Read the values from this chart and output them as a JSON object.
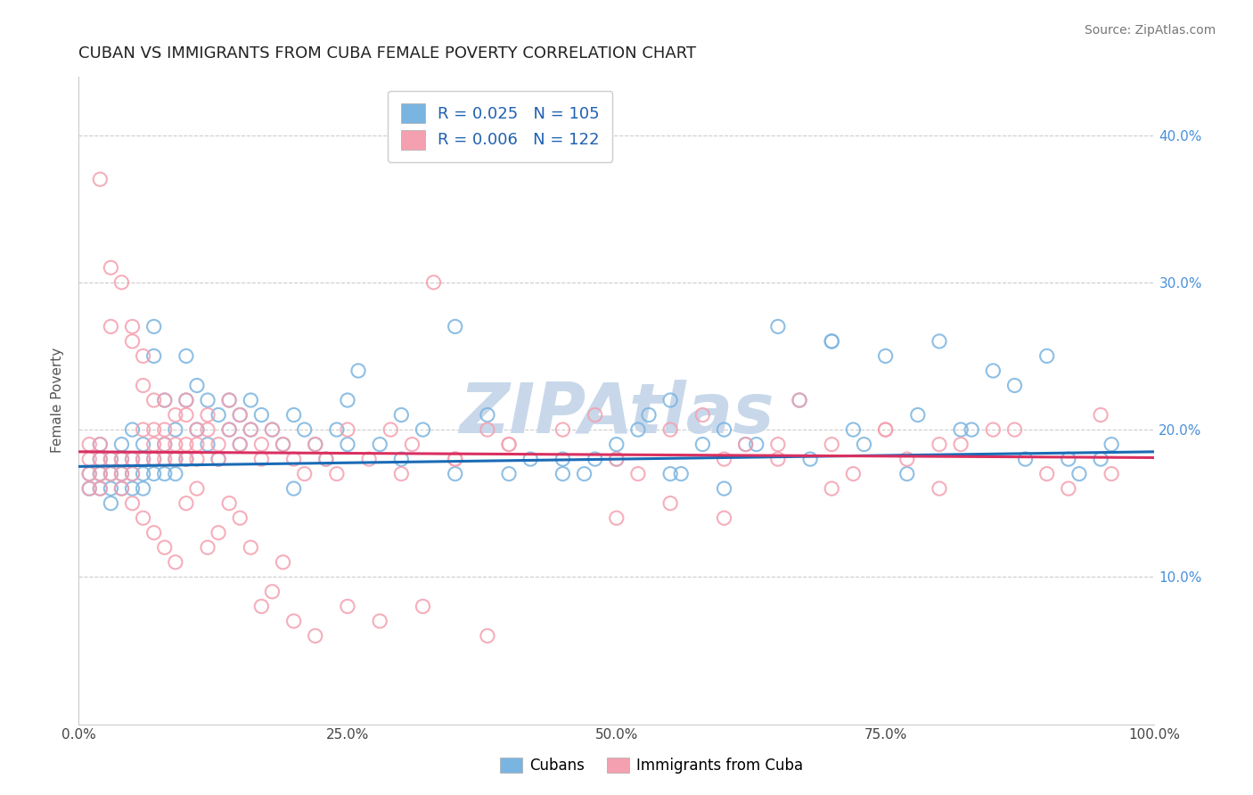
{
  "title": "CUBAN VS IMMIGRANTS FROM CUBA FEMALE POVERTY CORRELATION CHART",
  "source_text": "Source: ZipAtlas.com",
  "ylabel": "Female Poverty",
  "xlim": [
    0,
    1
  ],
  "ylim": [
    0.0,
    0.44
  ],
  "yticks": [
    0.0,
    0.1,
    0.2,
    0.3,
    0.4
  ],
  "ytick_labels_right": [
    "",
    "10.0%",
    "20.0%",
    "30.0%",
    "40.0%"
  ],
  "xticks": [
    0.0,
    0.25,
    0.5,
    0.75,
    1.0
  ],
  "xtick_labels": [
    "0.0%",
    "25.0%",
    "50.0%",
    "75.0%",
    "100.0%"
  ],
  "color_blue": "#7ab4e0",
  "color_pink": "#f4a0b0",
  "color_blue_trend": "#1a6bb5",
  "color_pink_trend": "#d93060",
  "trend_blue": [
    0.0,
    0.175,
    1.0,
    0.185
  ],
  "trend_pink": [
    0.0,
    0.185,
    1.0,
    0.181
  ],
  "watermark": "ZIPAtlas",
  "watermark_color": "#c8d8ea",
  "legend_text_color": "#2060b0",
  "cubans_x": [
    0.01,
    0.01,
    0.02,
    0.02,
    0.02,
    0.02,
    0.03,
    0.03,
    0.03,
    0.03,
    0.04,
    0.04,
    0.04,
    0.04,
    0.05,
    0.05,
    0.05,
    0.05,
    0.06,
    0.06,
    0.06,
    0.06,
    0.07,
    0.07,
    0.07,
    0.07,
    0.08,
    0.08,
    0.08,
    0.09,
    0.09,
    0.09,
    0.1,
    0.1,
    0.1,
    0.11,
    0.11,
    0.12,
    0.12,
    0.13,
    0.13,
    0.14,
    0.14,
    0.15,
    0.15,
    0.16,
    0.16,
    0.17,
    0.18,
    0.19,
    0.2,
    0.21,
    0.22,
    0.23,
    0.24,
    0.25,
    0.26,
    0.28,
    0.3,
    0.32,
    0.35,
    0.38,
    0.42,
    0.45,
    0.5,
    0.55,
    0.6,
    0.65,
    0.7,
    0.75,
    0.8,
    0.85,
    0.9,
    0.95,
    0.4,
    0.5,
    0.6,
    0.7,
    0.55,
    0.45,
    0.35,
    0.3,
    0.25,
    0.2,
    0.47,
    0.53,
    0.58,
    0.63,
    0.68,
    0.72,
    0.77,
    0.82,
    0.87,
    0.92,
    0.96,
    0.48,
    0.52,
    0.56,
    0.62,
    0.67,
    0.73,
    0.78,
    0.83,
    0.88,
    0.93
  ],
  "cubans_y": [
    0.17,
    0.16,
    0.18,
    0.17,
    0.19,
    0.16,
    0.18,
    0.17,
    0.16,
    0.15,
    0.18,
    0.17,
    0.16,
    0.19,
    0.18,
    0.17,
    0.16,
    0.2,
    0.18,
    0.17,
    0.19,
    0.16,
    0.27,
    0.25,
    0.18,
    0.17,
    0.22,
    0.19,
    0.17,
    0.2,
    0.18,
    0.17,
    0.25,
    0.22,
    0.18,
    0.23,
    0.2,
    0.22,
    0.19,
    0.21,
    0.18,
    0.22,
    0.2,
    0.21,
    0.19,
    0.22,
    0.2,
    0.21,
    0.2,
    0.19,
    0.21,
    0.2,
    0.19,
    0.18,
    0.2,
    0.22,
    0.24,
    0.19,
    0.21,
    0.2,
    0.27,
    0.21,
    0.18,
    0.17,
    0.19,
    0.22,
    0.2,
    0.27,
    0.26,
    0.25,
    0.26,
    0.24,
    0.25,
    0.18,
    0.17,
    0.18,
    0.16,
    0.26,
    0.17,
    0.18,
    0.17,
    0.18,
    0.19,
    0.16,
    0.17,
    0.21,
    0.19,
    0.19,
    0.18,
    0.2,
    0.17,
    0.2,
    0.23,
    0.18,
    0.19,
    0.18,
    0.2,
    0.17,
    0.19,
    0.22,
    0.19,
    0.21,
    0.2,
    0.18,
    0.17
  ],
  "immigrants_x": [
    0.01,
    0.01,
    0.01,
    0.01,
    0.02,
    0.02,
    0.02,
    0.02,
    0.02,
    0.03,
    0.03,
    0.03,
    0.03,
    0.04,
    0.04,
    0.04,
    0.05,
    0.05,
    0.05,
    0.05,
    0.06,
    0.06,
    0.06,
    0.06,
    0.07,
    0.07,
    0.07,
    0.07,
    0.08,
    0.08,
    0.08,
    0.08,
    0.09,
    0.09,
    0.09,
    0.1,
    0.1,
    0.1,
    0.1,
    0.11,
    0.11,
    0.11,
    0.12,
    0.12,
    0.13,
    0.13,
    0.14,
    0.14,
    0.15,
    0.15,
    0.16,
    0.17,
    0.17,
    0.18,
    0.19,
    0.2,
    0.21,
    0.22,
    0.23,
    0.24,
    0.25,
    0.27,
    0.29,
    0.31,
    0.33,
    0.35,
    0.38,
    0.4,
    0.45,
    0.5,
    0.55,
    0.6,
    0.65,
    0.7,
    0.75,
    0.8,
    0.85,
    0.9,
    0.95,
    0.3,
    0.35,
    0.4,
    0.5,
    0.55,
    0.6,
    0.7,
    0.75,
    0.8,
    0.65,
    0.48,
    0.52,
    0.58,
    0.62,
    0.67,
    0.72,
    0.77,
    0.82,
    0.87,
    0.92,
    0.96,
    0.04,
    0.05,
    0.06,
    0.07,
    0.08,
    0.09,
    0.1,
    0.11,
    0.12,
    0.13,
    0.14,
    0.15,
    0.16,
    0.17,
    0.18,
    0.19,
    0.2,
    0.22,
    0.25,
    0.28,
    0.32,
    0.38
  ],
  "immigrants_y": [
    0.17,
    0.18,
    0.16,
    0.19,
    0.37,
    0.18,
    0.17,
    0.16,
    0.19,
    0.31,
    0.18,
    0.17,
    0.27,
    0.3,
    0.18,
    0.17,
    0.27,
    0.26,
    0.18,
    0.17,
    0.25,
    0.23,
    0.2,
    0.18,
    0.22,
    0.2,
    0.19,
    0.18,
    0.22,
    0.2,
    0.19,
    0.18,
    0.21,
    0.19,
    0.18,
    0.22,
    0.21,
    0.19,
    0.18,
    0.2,
    0.19,
    0.18,
    0.21,
    0.2,
    0.19,
    0.18,
    0.22,
    0.2,
    0.21,
    0.19,
    0.2,
    0.19,
    0.18,
    0.2,
    0.19,
    0.18,
    0.17,
    0.19,
    0.18,
    0.17,
    0.2,
    0.18,
    0.2,
    0.19,
    0.3,
    0.18,
    0.2,
    0.19,
    0.2,
    0.18,
    0.15,
    0.14,
    0.19,
    0.16,
    0.2,
    0.19,
    0.2,
    0.17,
    0.21,
    0.17,
    0.18,
    0.19,
    0.14,
    0.2,
    0.18,
    0.19,
    0.2,
    0.16,
    0.18,
    0.21,
    0.17,
    0.21,
    0.19,
    0.22,
    0.17,
    0.18,
    0.19,
    0.2,
    0.16,
    0.17,
    0.16,
    0.15,
    0.14,
    0.13,
    0.12,
    0.11,
    0.15,
    0.16,
    0.12,
    0.13,
    0.15,
    0.14,
    0.12,
    0.08,
    0.09,
    0.11,
    0.07,
    0.06,
    0.08,
    0.07,
    0.08,
    0.06
  ]
}
